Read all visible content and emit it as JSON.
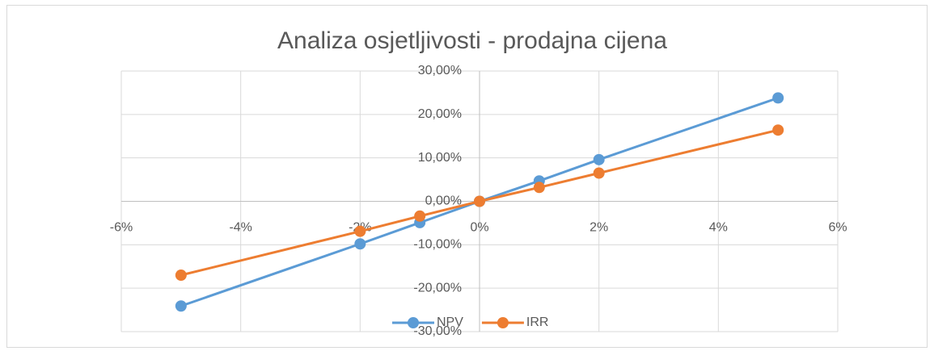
{
  "chart_data": {
    "type": "scatter",
    "title": "Analiza osjetljivosti - prodajna cijena",
    "x": [
      -5,
      -2,
      -1,
      0,
      1,
      2,
      5
    ],
    "series": [
      {
        "name": "NPV",
        "color": "#5b9bd5",
        "values": [
          -24.1,
          -9.8,
          -4.9,
          0,
          4.7,
          9.6,
          23.8
        ]
      },
      {
        "name": "IRR",
        "color": "#ed7d31",
        "values": [
          -17.0,
          -6.9,
          -3.4,
          0,
          3.2,
          6.5,
          16.4
        ]
      }
    ],
    "xlim": [
      -6,
      6
    ],
    "xticks": [
      {
        "value": -6,
        "label": "-6%"
      },
      {
        "value": -4,
        "label": "-4%"
      },
      {
        "value": -2,
        "label": "-2%"
      },
      {
        "value": 0,
        "label": "0%"
      },
      {
        "value": 2,
        "label": "2%"
      },
      {
        "value": 4,
        "label": "4%"
      },
      {
        "value": 6,
        "label": "6%"
      }
    ],
    "ylim": [
      -30,
      30
    ],
    "yticks": [
      {
        "value": -30,
        "label": "-30,00%"
      },
      {
        "value": -20,
        "label": "-20,00%"
      },
      {
        "value": -10,
        "label": "-10,00%"
      },
      {
        "value": 0,
        "label": "0,00%"
      },
      {
        "value": 10,
        "label": "10,00%"
      },
      {
        "value": 20,
        "label": "20,00%"
      },
      {
        "value": 30,
        "label": "30,00%"
      }
    ],
    "grid": true,
    "legend": "bottom"
  }
}
